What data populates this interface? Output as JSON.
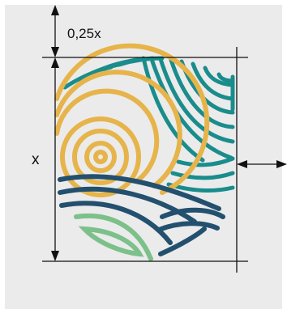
{
  "labels": {
    "top_margin": "0,25x",
    "height": "x"
  },
  "colors": {
    "background": "#ebebeb",
    "teal": "#1a8c8c",
    "gold": "#e6b44a",
    "navy": "#23506e",
    "green": "#7cc08a",
    "line": "#111111"
  }
}
